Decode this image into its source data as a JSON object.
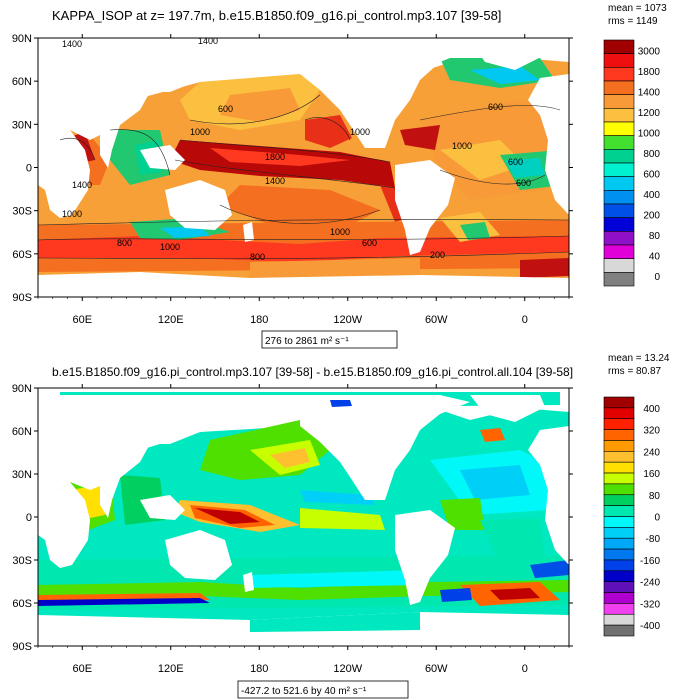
{
  "panels": [
    {
      "title": "KAPPA_ISOP at z= 197.7m, b.e15.B1850.f09_g16.pi_control.mp3.107 [39-58]",
      "stats": {
        "mean": "mean = 1073",
        "rms": "rms = 1149"
      },
      "range_label": "276 to 2861",
      "units": "m² s⁻¹",
      "y_ticks": [
        "90N",
        "60N",
        "30N",
        "0",
        "30S",
        "60S",
        "90S"
      ],
      "x_ticks": [
        "60E",
        "120E",
        "180",
        "120W",
        "60W",
        "0"
      ],
      "colorbar": {
        "labels": [
          "3000",
          "1800",
          "1400",
          "1200",
          "1000",
          "800",
          "600",
          "400",
          "200",
          "80",
          "40",
          "0"
        ],
        "colors": [
          "#a00000",
          "#ee1010",
          "#ff3820",
          "#f47020",
          "#f89a38",
          "#fcc040",
          "#ffff00",
          "#44e030",
          "#00d090",
          "#00f0d0",
          "#00c8f0",
          "#0090f0",
          "#0050e8",
          "#0000d8",
          "#9010c8",
          "#e000d8",
          "#d8d8d8",
          "#808080"
        ]
      },
      "contour_labels": [
        "1400",
        "1400",
        "600",
        "1000",
        "1000",
        "1800",
        "1400",
        "1400",
        "1000",
        "600",
        "1000",
        "1000",
        "600",
        "600",
        "600",
        "1000",
        "800",
        "200",
        "800"
      ]
    },
    {
      "title": "b.e15.B1850.f09_g16.pi_control.mp3.107 [39-58] - b.e15.B1850.f09_g16.pi_control.all.104 [39-58]",
      "stats": {
        "mean": "mean = 13.24",
        "rms": "rms = 80.87"
      },
      "range_label": "-427.2 to 521.6 by 40",
      "units": "m² s⁻¹",
      "y_ticks": [
        "90N",
        "60N",
        "30N",
        "0",
        "30S",
        "60S",
        "90S"
      ],
      "x_ticks": [
        "60E",
        "120E",
        "180",
        "120W",
        "60W",
        "0"
      ],
      "colorbar": {
        "labels": [
          "400",
          "320",
          "240",
          "160",
          "80",
          "0",
          "-80",
          "-160",
          "-240",
          "-320",
          "-400"
        ],
        "colors": [
          "#a00000",
          "#e00000",
          "#ff2000",
          "#ff6400",
          "#ff9a00",
          "#ffc030",
          "#ffe000",
          "#c8ff00",
          "#50e000",
          "#00d060",
          "#00e8b0",
          "#00f8f8",
          "#00d0f8",
          "#00a8f8",
          "#0078f0",
          "#0040e8",
          "#0000c8",
          "#6010b8",
          "#b000d0",
          "#f040f0",
          "#d8d8d8",
          "#707070"
        ]
      }
    }
  ]
}
